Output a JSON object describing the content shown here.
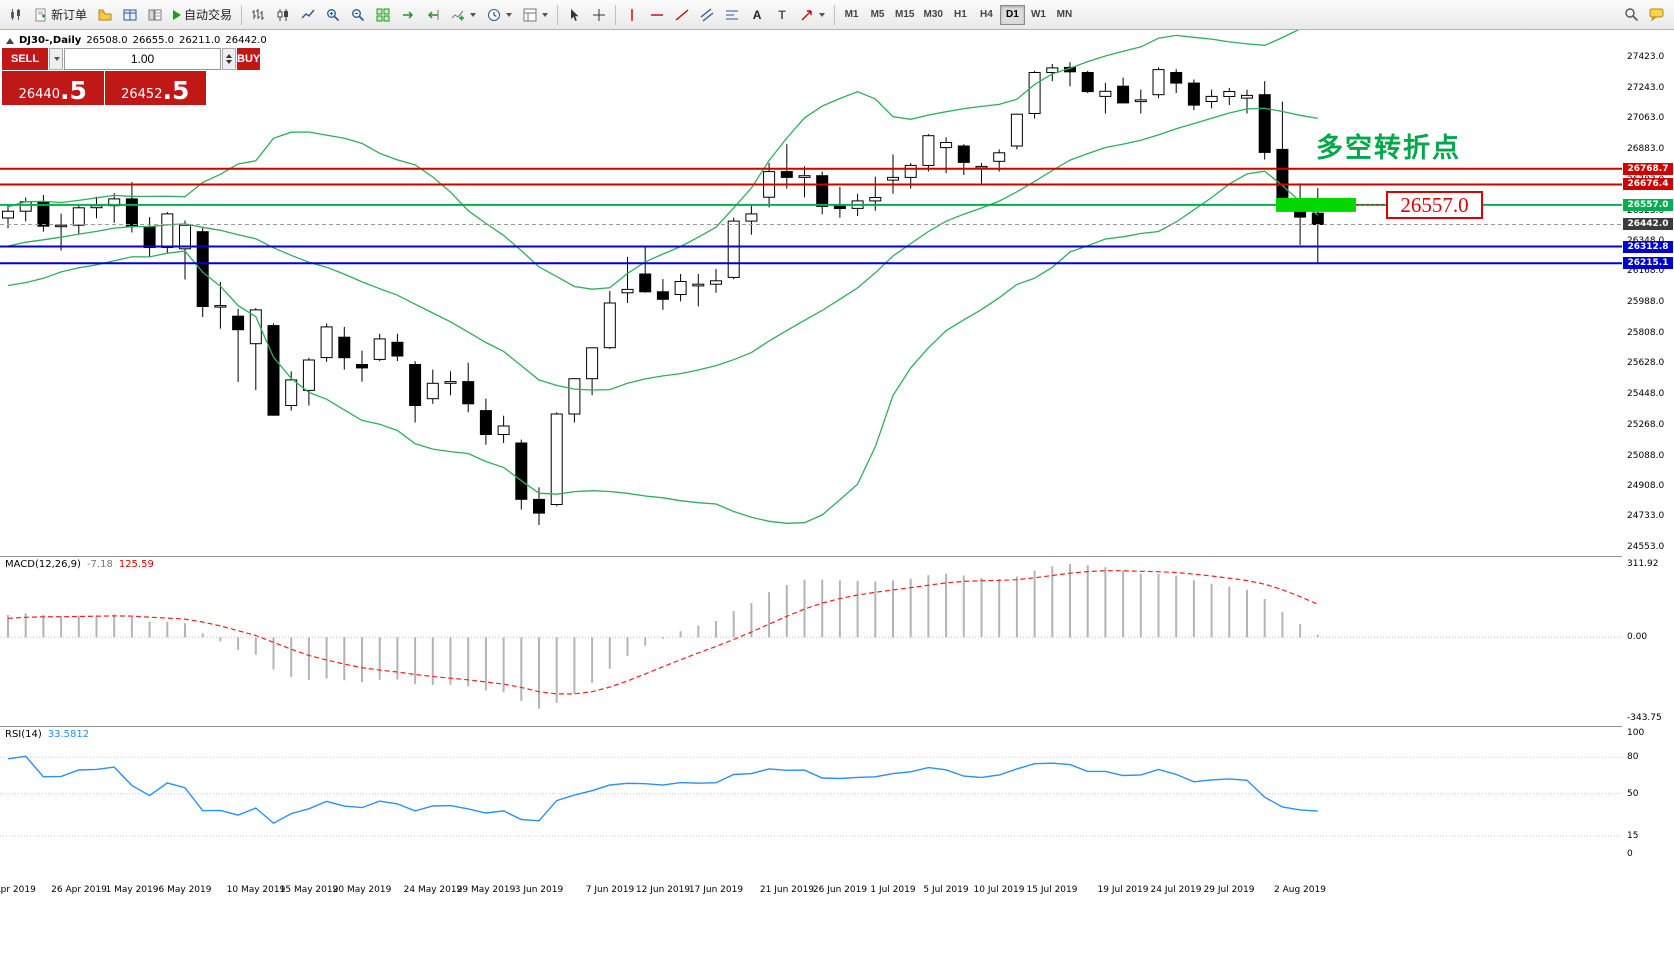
{
  "toolbar": {
    "new_order": "新订单",
    "autotrading": "自动交易",
    "timeframes": [
      "M1",
      "M5",
      "M15",
      "M30",
      "H1",
      "H4",
      "D1",
      "W1",
      "MN"
    ],
    "active_timeframe": "D1",
    "text_tool": "A",
    "label_tool": "T"
  },
  "chart": {
    "header": {
      "symbol": "DJ30-,Daily",
      "open": "26508.0",
      "high": "26655.0",
      "low": "26211.0",
      "close": "26442.0"
    },
    "trade_panel": {
      "sell_label": "SELL",
      "buy_label": "BUY",
      "volume": "1.00",
      "sell_main": "26440",
      "sell_big": ".5",
      "buy_main": "26452",
      "buy_big": ".5"
    },
    "annotation_note": "多空转折点",
    "price_callout": "26557.0",
    "colors": {
      "resistance": "#d10000",
      "pivot": "#00b050",
      "support": "#0000d1",
      "current_label": "#3c3c3c",
      "bands": "#2eaf5b",
      "highlight": "#00d800"
    },
    "levels": [
      {
        "price": 26768.7,
        "label": "26768.7",
        "type": "resistance"
      },
      {
        "price": 26676.4,
        "label": "26676.4",
        "type": "resistance"
      },
      {
        "price": 26557.0,
        "label": "26557.0",
        "type": "pivot"
      },
      {
        "price": 26442.0,
        "label": "26442.0",
        "type": "current"
      },
      {
        "price": 26312.8,
        "label": "26312.8",
        "type": "support"
      },
      {
        "price": 26215.1,
        "label": "26215.1",
        "type": "support"
      }
    ],
    "highlight": {
      "x": 1276,
      "width": 80,
      "height": 14,
      "price": 26557.0
    },
    "price_ticks": [
      "27423.0",
      "27243.0",
      "27063.0",
      "26883.0",
      "26703.0",
      "26523.0",
      "26348.0",
      "26168.0",
      "25988.0",
      "25808.0",
      "25628.0",
      "25448.0",
      "25268.0",
      "25088.0",
      "24908.0",
      "24733.0",
      "24553.0"
    ],
    "date_ticks": [
      {
        "label": "22 Apr 2019",
        "i": 0
      },
      {
        "label": "26 Apr 2019",
        "i": 4
      },
      {
        "label": "1 May 2019",
        "i": 7
      },
      {
        "label": "6 May 2019",
        "i": 10
      },
      {
        "label": "10 May 2019",
        "i": 14
      },
      {
        "label": "15 May 2019",
        "i": 17
      },
      {
        "label": "20 May 2019",
        "i": 20
      },
      {
        "label": "24 May 2019",
        "i": 24
      },
      {
        "label": "29 May 2019",
        "i": 27
      },
      {
        "label": "3 Jun 2019",
        "i": 30
      },
      {
        "label": "7 Jun 2019",
        "i": 34
      },
      {
        "label": "12 Jun 2019",
        "i": 37
      },
      {
        "label": "17 Jun 2019",
        "i": 40
      },
      {
        "label": "21 Jun 2019",
        "i": 44
      },
      {
        "label": "26 Jun 2019",
        "i": 47
      },
      {
        "label": "1 Jul 2019",
        "i": 50
      },
      {
        "label": "5 Jul 2019",
        "i": 53
      },
      {
        "label": "10 Jul 2019",
        "i": 56
      },
      {
        "label": "15 Jul 2019",
        "i": 59
      },
      {
        "label": "19 Jul 2019",
        "i": 63
      },
      {
        "label": "24 Jul 2019",
        "i": 66
      },
      {
        "label": "29 Jul 2019",
        "i": 69
      },
      {
        "label": "2 Aug 2019",
        "i": 73
      }
    ]
  },
  "chart_data": {
    "type": "candlestick",
    "title": "DJ30 Daily with Bollinger Bands, MACD(12,26,9), RSI(14)",
    "symbol": "DJ30",
    "period": "Daily",
    "y_range": [
      24553.0,
      27423.0
    ],
    "overlays": {
      "bollinger": {
        "period": 20,
        "deviation": 2,
        "color": "green"
      }
    },
    "prehistory_closes": [
      26062,
      26110,
      26158,
      26130,
      26180,
      26230,
      26205,
      26262,
      26310,
      26282,
      26335,
      26365,
      26312,
      26355,
      26405,
      26382,
      26418,
      26452,
      26430,
      26465
    ],
    "candles": [
      [
        26480,
        26560,
        26420,
        26520
      ],
      [
        26520,
        26600,
        26460,
        26575
      ],
      [
        26575,
        26615,
        26400,
        26432
      ],
      [
        26432,
        26505,
        26290,
        26438
      ],
      [
        26438,
        26555,
        26385,
        26540
      ],
      [
        26540,
        26605,
        26478,
        26552
      ],
      [
        26552,
        26625,
        26452,
        26592
      ],
      [
        26592,
        26690,
        26395,
        26430
      ],
      [
        26430,
        26485,
        26255,
        26307
      ],
      [
        26307,
        26515,
        26278,
        26504
      ],
      [
        26300,
        26465,
        26120,
        26438
      ],
      [
        26400,
        26425,
        25900,
        25962
      ],
      [
        25962,
        26105,
        25832,
        25967
      ],
      [
        25905,
        25948,
        25520,
        25826
      ],
      [
        25744,
        25952,
        25472,
        25942
      ],
      [
        25850,
        25862,
        25322,
        25325
      ],
      [
        25382,
        25582,
        25352,
        25532
      ],
      [
        25470,
        25662,
        25382,
        25648
      ],
      [
        25662,
        25862,
        25638,
        25842
      ],
      [
        25782,
        25842,
        25592,
        25662
      ],
      [
        25622,
        25702,
        25522,
        25602
      ],
      [
        25652,
        25802,
        25642,
        25772
      ],
      [
        25752,
        25802,
        25642,
        25672
      ],
      [
        25622,
        25642,
        25282,
        25382
      ],
      [
        25422,
        25592,
        25392,
        25512
      ],
      [
        25512,
        25582,
        25442,
        25522
      ],
      [
        25522,
        25632,
        25342,
        25392
      ],
      [
        25352,
        25422,
        25152,
        25212
      ],
      [
        25212,
        25322,
        25162,
        25262
      ],
      [
        25162,
        25182,
        24772,
        24832
      ],
      [
        24832,
        24902,
        24682,
        24752
      ],
      [
        24802,
        25342,
        24792,
        25332
      ],
      [
        25332,
        25542,
        25282,
        25539
      ],
      [
        25539,
        25722,
        25442,
        25720
      ],
      [
        25720,
        26052,
        25712,
        25982
      ],
      [
        26042,
        26252,
        25982,
        26062
      ],
      [
        26152,
        26312,
        26042,
        26048
      ],
      [
        26048,
        26122,
        25942,
        26004
      ],
      [
        26032,
        26152,
        25992,
        26108
      ],
      [
        26082,
        26152,
        25962,
        26092
      ],
      [
        26092,
        26182,
        26042,
        26112
      ],
      [
        26132,
        26482,
        26122,
        26462
      ],
      [
        26462,
        26562,
        26382,
        26504
      ],
      [
        26602,
        26802,
        26542,
        26752
      ],
      [
        26752,
        26912,
        26652,
        26718
      ],
      [
        26718,
        26782,
        26602,
        26728
      ],
      [
        26728,
        26752,
        26502,
        26548
      ],
      [
        26558,
        26662,
        26482,
        26536
      ],
      [
        26536,
        26622,
        26492,
        26580
      ],
      [
        26580,
        26722,
        26522,
        26600
      ],
      [
        26702,
        26852,
        26622,
        26718
      ],
      [
        26718,
        26802,
        26652,
        26788
      ],
      [
        26788,
        26972,
        26752,
        26962
      ],
      [
        26892,
        26952,
        26742,
        26922
      ],
      [
        26902,
        26912,
        26732,
        26806
      ],
      [
        26782,
        26802,
        26672,
        26782
      ],
      [
        26812,
        26882,
        26752,
        26862
      ],
      [
        26902,
        27092,
        26882,
        27088
      ],
      [
        27092,
        27342,
        27062,
        27332
      ],
      [
        27332,
        27382,
        27282,
        27359
      ],
      [
        27362,
        27392,
        27252,
        27336
      ],
      [
        27332,
        27342,
        27212,
        27220
      ],
      [
        27192,
        27272,
        27092,
        27222
      ],
      [
        27252,
        27302,
        27152,
        27154
      ],
      [
        27162,
        27232,
        27092,
        27172
      ],
      [
        27202,
        27362,
        27182,
        27349
      ],
      [
        27332,
        27352,
        27212,
        27270
      ],
      [
        27270,
        27292,
        27112,
        27141
      ],
      [
        27162,
        27232,
        27122,
        27192
      ],
      [
        27192,
        27242,
        27142,
        27221
      ],
      [
        27182,
        27232,
        27092,
        27198
      ],
      [
        27202,
        27282,
        26822,
        26864
      ],
      [
        26882,
        27162,
        26582,
        26583
      ],
      [
        26583,
        26683,
        26322,
        26485
      ],
      [
        26508,
        26655,
        26211,
        26442
      ]
    ]
  },
  "macd": {
    "name": "MACD(12,26,9)",
    "value": "-7.18",
    "signal": "125.59",
    "scale": [
      "311.92",
      "0.00",
      "-343.75"
    ]
  },
  "rsi": {
    "name": "RSI(14)",
    "value": "33.5812",
    "scale": [
      "100",
      "80",
      "50",
      "15",
      "0"
    ]
  }
}
